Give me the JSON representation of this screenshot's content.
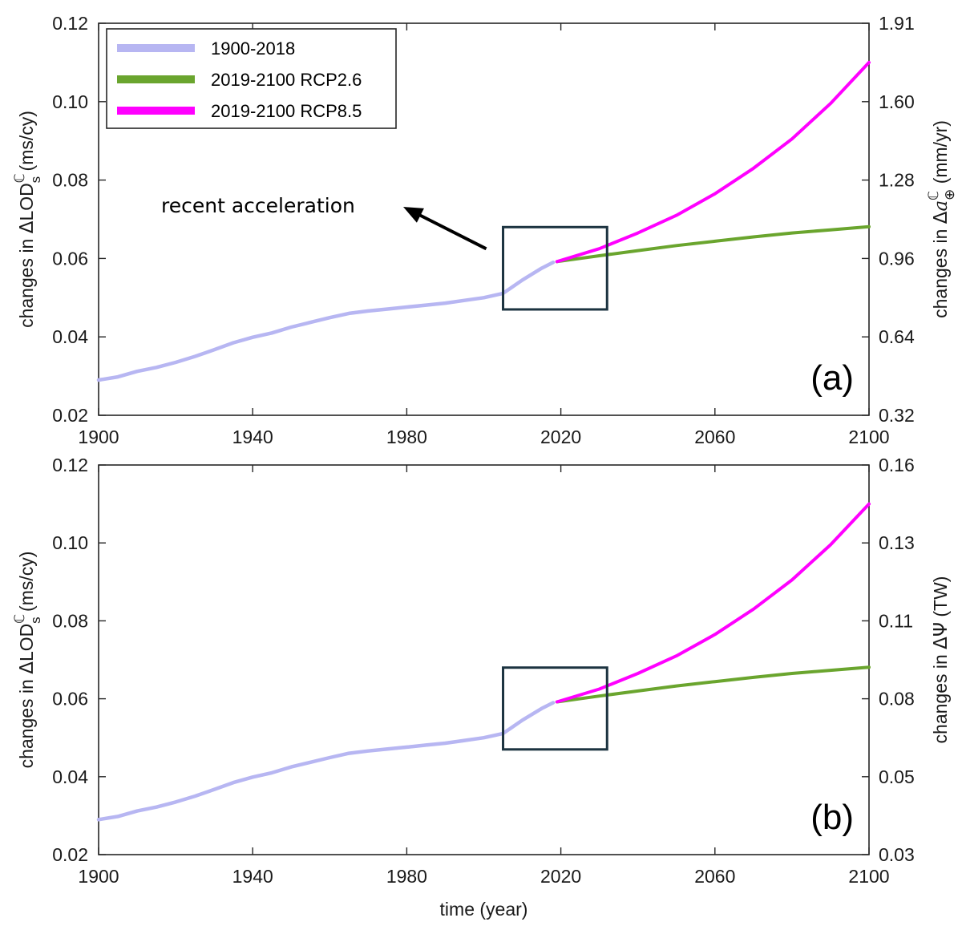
{
  "chart_data": [
    {
      "type": "line",
      "panel_label": "(a)",
      "xlabel": "",
      "xlim": [
        1900,
        2100
      ],
      "xticks": [
        "1900",
        "1940",
        "1980",
        "2020",
        "2060",
        "2100"
      ],
      "ylabel": "changes in ΔLODℂs (ms/cy)",
      "ylabel_parts": {
        "prefix": "changes in ",
        "delta": "Δ",
        "quantity": "LOD",
        "sup": "ℂ",
        "sub": "s",
        "unit": " (ms/cy)"
      },
      "ylim": [
        0.02,
        0.12
      ],
      "yticks": [
        "0.02",
        "0.04",
        "0.06",
        "0.08",
        "0.10",
        "0.12"
      ],
      "y2label": "changes in Δaℂ⊕ (mm/yr)",
      "y2label_parts": {
        "prefix": "changes in ",
        "delta": "Δ",
        "quantity": "a",
        "sup": "ℂ",
        "sub": "⊕",
        "unit": " (mm/yr)"
      },
      "y2ticks": [
        "0.32",
        "0.64",
        "0.96",
        "1.28",
        "1.60",
        "1.91"
      ],
      "annotation": "recent acceleration",
      "highlight_box": {
        "x": [
          2005,
          2032
        ],
        "y": [
          0.047,
          0.068
        ]
      },
      "legend": {
        "placement": "top-left",
        "entries": [
          "1900-2018",
          "2019-2100 RCP2.6",
          "2019-2100 RCP8.5"
        ]
      }
    },
    {
      "type": "line",
      "panel_label": "(b)",
      "xlabel": "time (year)",
      "xlim": [
        1900,
        2100
      ],
      "xticks": [
        "1900",
        "1940",
        "1980",
        "2020",
        "2060",
        "2100"
      ],
      "ylabel": "changes in ΔLODℂs (ms/cy)",
      "ylabel_parts": {
        "prefix": "changes in ",
        "delta": "Δ",
        "quantity": "LOD",
        "sup": "ℂ",
        "sub": "s",
        "unit": " (ms/cy)"
      },
      "ylim": [
        0.02,
        0.12
      ],
      "yticks": [
        "0.02",
        "0.04",
        "0.06",
        "0.08",
        "0.10",
        "0.12"
      ],
      "y2label": "changes in ΔΨ (TW)",
      "y2label_parts": {
        "prefix": "changes in ",
        "delta": "Δ",
        "quantity": "Ψ",
        "unit": " (TW)"
      },
      "y2ticks": [
        "0.03",
        "0.05",
        "0.08",
        "0.11",
        "0.13",
        "0.16"
      ],
      "highlight_box": {
        "x": [
          2005,
          2032
        ],
        "y": [
          0.047,
          0.068
        ]
      }
    }
  ],
  "series": [
    {
      "name": "1900-2018",
      "color": "#b7b6f2",
      "points": [
        [
          1900,
          0.029
        ],
        [
          1905,
          0.0298
        ],
        [
          1910,
          0.0312
        ],
        [
          1915,
          0.0322
        ],
        [
          1920,
          0.0335
        ],
        [
          1925,
          0.035
        ],
        [
          1930,
          0.0367
        ],
        [
          1935,
          0.0385
        ],
        [
          1940,
          0.0399
        ],
        [
          1945,
          0.041
        ],
        [
          1950,
          0.0425
        ],
        [
          1955,
          0.0437
        ],
        [
          1960,
          0.0449
        ],
        [
          1965,
          0.046
        ],
        [
          1970,
          0.0466
        ],
        [
          1975,
          0.0471
        ],
        [
          1980,
          0.0476
        ],
        [
          1985,
          0.0481
        ],
        [
          1990,
          0.0486
        ],
        [
          1995,
          0.0493
        ],
        [
          2000,
          0.05
        ],
        [
          2005,
          0.0511
        ],
        [
          2010,
          0.0545
        ],
        [
          2015,
          0.0575
        ],
        [
          2018,
          0.059
        ]
      ]
    },
    {
      "name": "2019-2100 RCP2.6",
      "color": "#6aa52e",
      "points": [
        [
          2019,
          0.0592
        ],
        [
          2030,
          0.0607
        ],
        [
          2040,
          0.062
        ],
        [
          2050,
          0.0633
        ],
        [
          2060,
          0.0644
        ],
        [
          2070,
          0.0655
        ],
        [
          2080,
          0.0665
        ],
        [
          2090,
          0.0673
        ],
        [
          2100,
          0.0681
        ]
      ]
    },
    {
      "name": "2019-2100 RCP8.5",
      "color": "#ff00ff",
      "points": [
        [
          2019,
          0.0592
        ],
        [
          2030,
          0.0625
        ],
        [
          2040,
          0.0665
        ],
        [
          2050,
          0.071
        ],
        [
          2060,
          0.0765
        ],
        [
          2070,
          0.083
        ],
        [
          2080,
          0.0905
        ],
        [
          2090,
          0.0995
        ],
        [
          2100,
          0.11
        ]
      ]
    }
  ],
  "colors": {
    "box": "#1c3340",
    "axis": "#262626",
    "arrow": "#000000"
  }
}
